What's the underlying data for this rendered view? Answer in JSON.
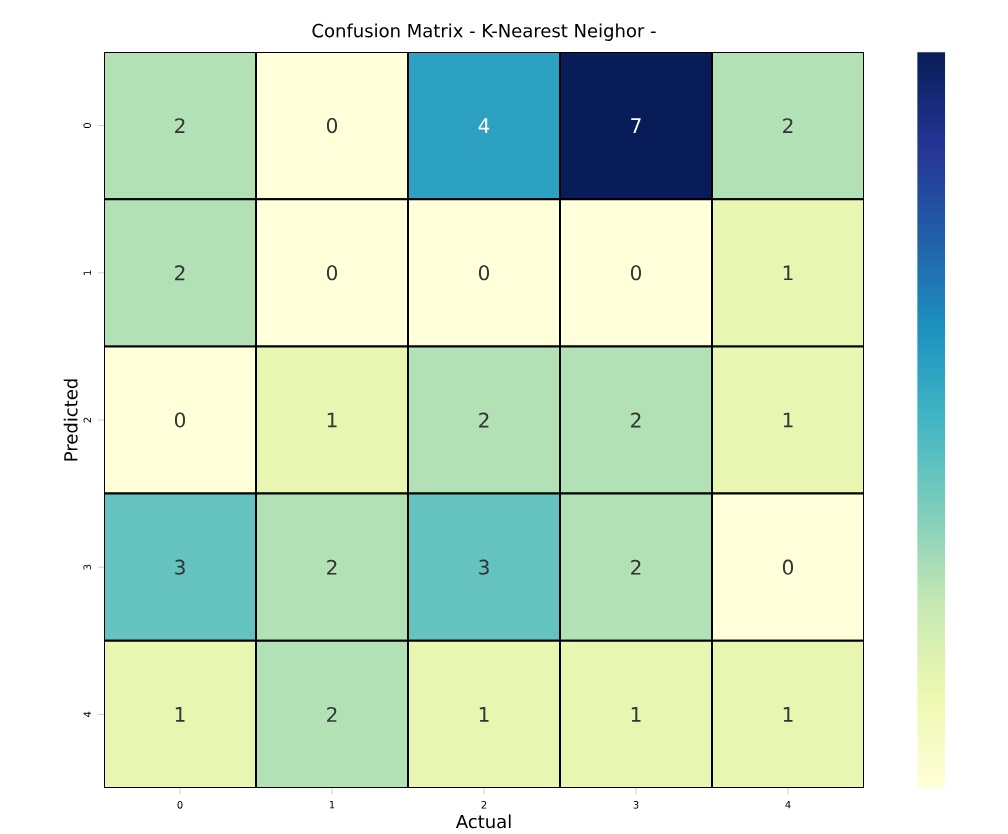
{
  "chart_data": {
    "type": "heatmap",
    "title": "Confusion Matrix - K-Nearest Neighor -",
    "xlabel": "Actual",
    "ylabel": "Predicted",
    "categories": [
      "0",
      "1",
      "2",
      "3",
      "4"
    ],
    "y_categories": [
      "0",
      "1",
      "2",
      "3",
      "4"
    ],
    "cells": [
      [
        2,
        0,
        4,
        7,
        2
      ],
      [
        2,
        0,
        0,
        0,
        1
      ],
      [
        0,
        1,
        2,
        2,
        1
      ],
      [
        3,
        2,
        3,
        2,
        0
      ],
      [
        1,
        2,
        1,
        1,
        1
      ]
    ],
    "data_labels": true
  }
}
